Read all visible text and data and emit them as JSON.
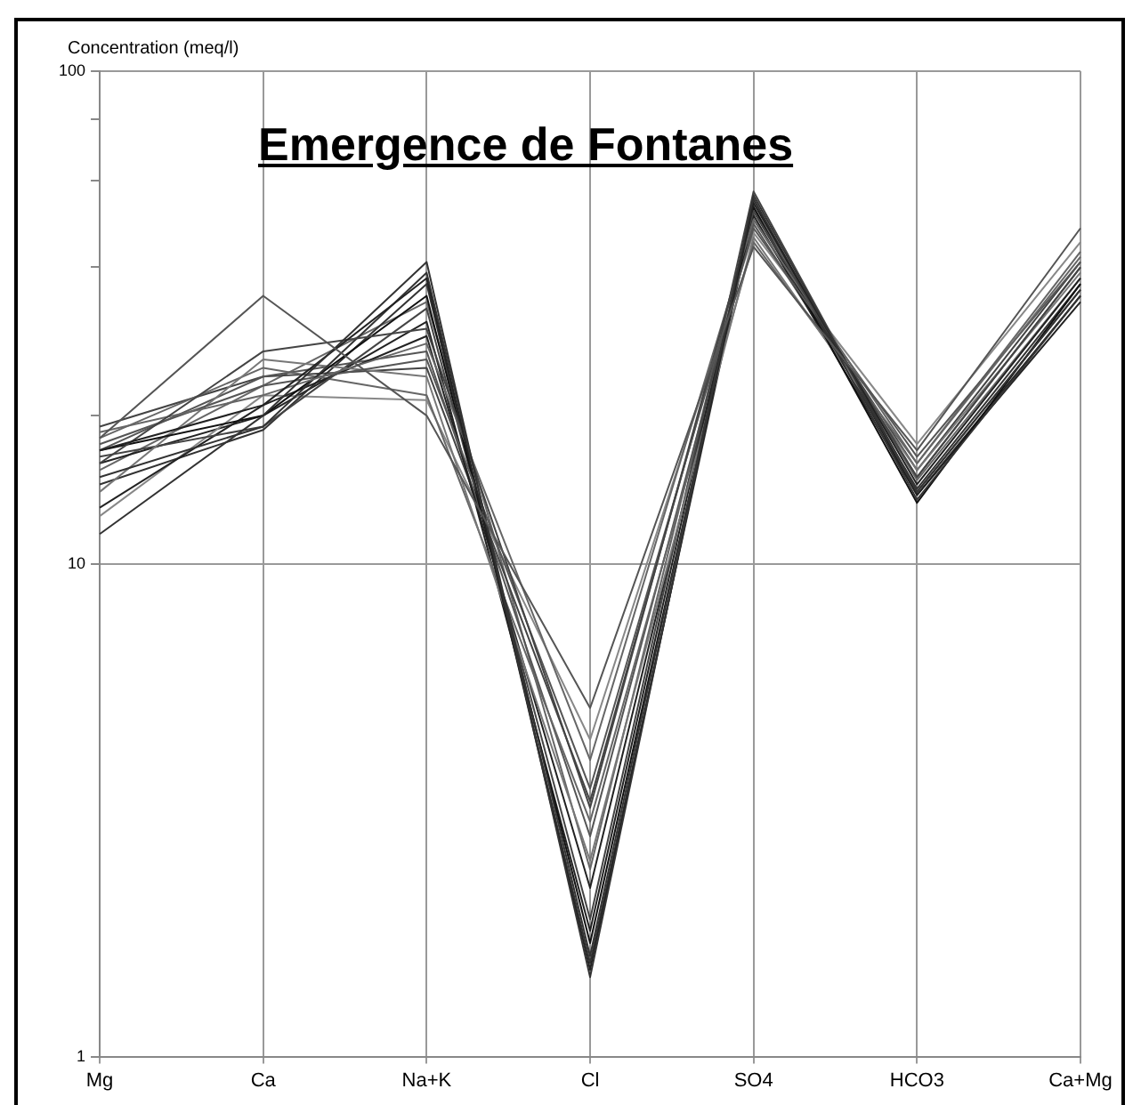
{
  "chart_data": {
    "type": "line",
    "title": "Emergence de Fontanes",
    "ylabel": "Concentration (meq/l)",
    "categories": [
      "Mg",
      "Ca",
      "Na+K",
      "Cl",
      "SO4",
      "HCO3",
      "Ca+Mg"
    ],
    "log": true,
    "ylim": [
      1,
      100
    ],
    "yticks": [
      1,
      {
        "value": 20,
        "label": null
      },
      {
        "value": 40,
        "label": null
      },
      {
        "value": 60,
        "label": null
      },
      {
        "value": 80,
        "label": null
      },
      10,
      100
    ],
    "grid": true,
    "legend": false,
    "marker": "none",
    "line_style": "solid",
    "series": [
      {
        "color": "#555555",
        "values": [
          18,
          35,
          20,
          5.1,
          44,
          17,
          48
        ]
      },
      {
        "color": "#333333",
        "values": [
          11.5,
          20,
          41,
          1.45,
          56,
          14,
          36
        ]
      },
      {
        "color": "#222222",
        "values": [
          17,
          21,
          38,
          1.5,
          54,
          14.5,
          38
        ]
      },
      {
        "color": "#444444",
        "values": [
          16,
          27,
          30,
          3.2,
          52,
          15,
          40
        ]
      },
      {
        "color": "#666666",
        "values": [
          18.5,
          22,
          28,
          4,
          50,
          16,
          42
        ]
      },
      {
        "color": "#333333",
        "values": [
          15,
          19,
          39,
          1.6,
          55,
          13.5,
          35
        ]
      },
      {
        "color": "#555555",
        "values": [
          17.5,
          23,
          26,
          3.5,
          48,
          16.5,
          41
        ]
      },
      {
        "color": "#111111",
        "values": [
          17,
          20,
          35,
          1.7,
          53,
          13.3,
          37
        ]
      },
      {
        "color": "#777777",
        "values": [
          14,
          26,
          24,
          2.5,
          46,
          15.5,
          39
        ]
      },
      {
        "color": "#444444",
        "values": [
          16.5,
          19,
          33,
          1.9,
          57,
          14,
          36
        ]
      },
      {
        "color": "#222222",
        "values": [
          13,
          21,
          29,
          2.2,
          51,
          13.8,
          34
        ]
      },
      {
        "color": "#666666",
        "values": [
          18,
          25,
          22,
          3,
          45,
          16,
          43
        ]
      },
      {
        "color": "#333333",
        "values": [
          14.5,
          18.7,
          37,
          1.55,
          52,
          14.2,
          37
        ]
      },
      {
        "color": "#555555",
        "values": [
          17,
          24,
          27,
          2.8,
          49,
          15,
          40
        ]
      },
      {
        "color": "#888888",
        "values": [
          12.5,
          22,
          21.5,
          4.4,
          47,
          17.5,
          45
        ]
      },
      {
        "color": "#222222",
        "values": [
          16,
          20,
          31,
          1.8,
          55,
          13.8,
          35
        ]
      },
      {
        "color": "#444444",
        "values": [
          19,
          24,
          25,
          3.3,
          50,
          15.5,
          41
        ]
      },
      {
        "color": "#666666",
        "values": [
          15.5,
          23,
          34,
          2.4,
          53,
          14.8,
          38
        ]
      }
    ]
  }
}
